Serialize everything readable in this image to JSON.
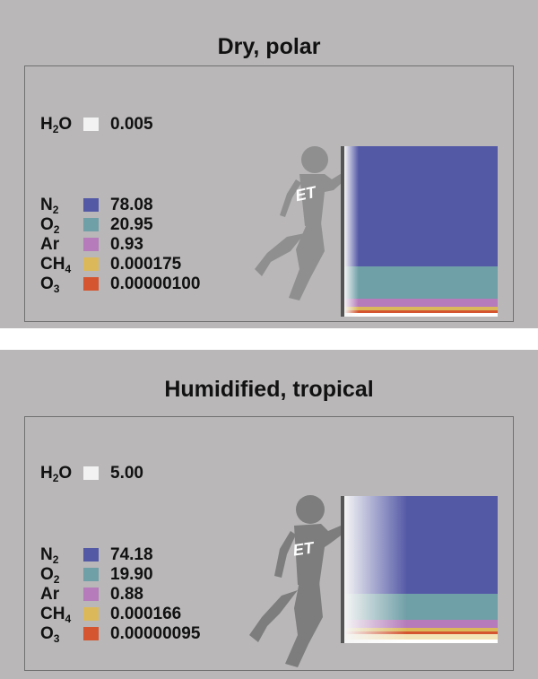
{
  "panels": [
    {
      "title": "Dry, polar",
      "water": {
        "formula": "H",
        "sub": "2",
        "tail": "O",
        "value": "0.005",
        "color": "#f2f2f2"
      },
      "gases": [
        {
          "formula": "N",
          "sub": "2",
          "tail": "",
          "value": "78.08",
          "color": "#5459a6"
        },
        {
          "formula": "O",
          "sub": "2",
          "tail": "",
          "value": "20.95",
          "color": "#6f9fa7"
        },
        {
          "formula": "Ar",
          "sub": "",
          "tail": "",
          "value": "0.93",
          "color": "#b57bbb"
        },
        {
          "formula": "CH",
          "sub": "4",
          "tail": "",
          "value": "0.000175",
          "color": "#dbb95a"
        },
        {
          "formula": "O",
          "sub": "3",
          "tail": "",
          "value": "0.00000100",
          "color": "#d4552f"
        }
      ],
      "figure_label": "ET"
    },
    {
      "title": "Humidified, tropical",
      "water": {
        "formula": "H",
        "sub": "2",
        "tail": "O",
        "value": "5.00",
        "color": "#f2f2f2"
      },
      "gases": [
        {
          "formula": "N",
          "sub": "2",
          "tail": "",
          "value": "74.18",
          "color": "#5459a6"
        },
        {
          "formula": "O",
          "sub": "2",
          "tail": "",
          "value": "19.90",
          "color": "#6f9fa7"
        },
        {
          "formula": "Ar",
          "sub": "",
          "tail": "",
          "value": "0.88",
          "color": "#b57bbb"
        },
        {
          "formula": "CH",
          "sub": "4",
          "tail": "",
          "value": "0.000166",
          "color": "#dbb95a"
        },
        {
          "formula": "O",
          "sub": "3",
          "tail": "",
          "value": "0.00000095",
          "color": "#d4552f"
        }
      ],
      "figure_label": "ET"
    }
  ]
}
